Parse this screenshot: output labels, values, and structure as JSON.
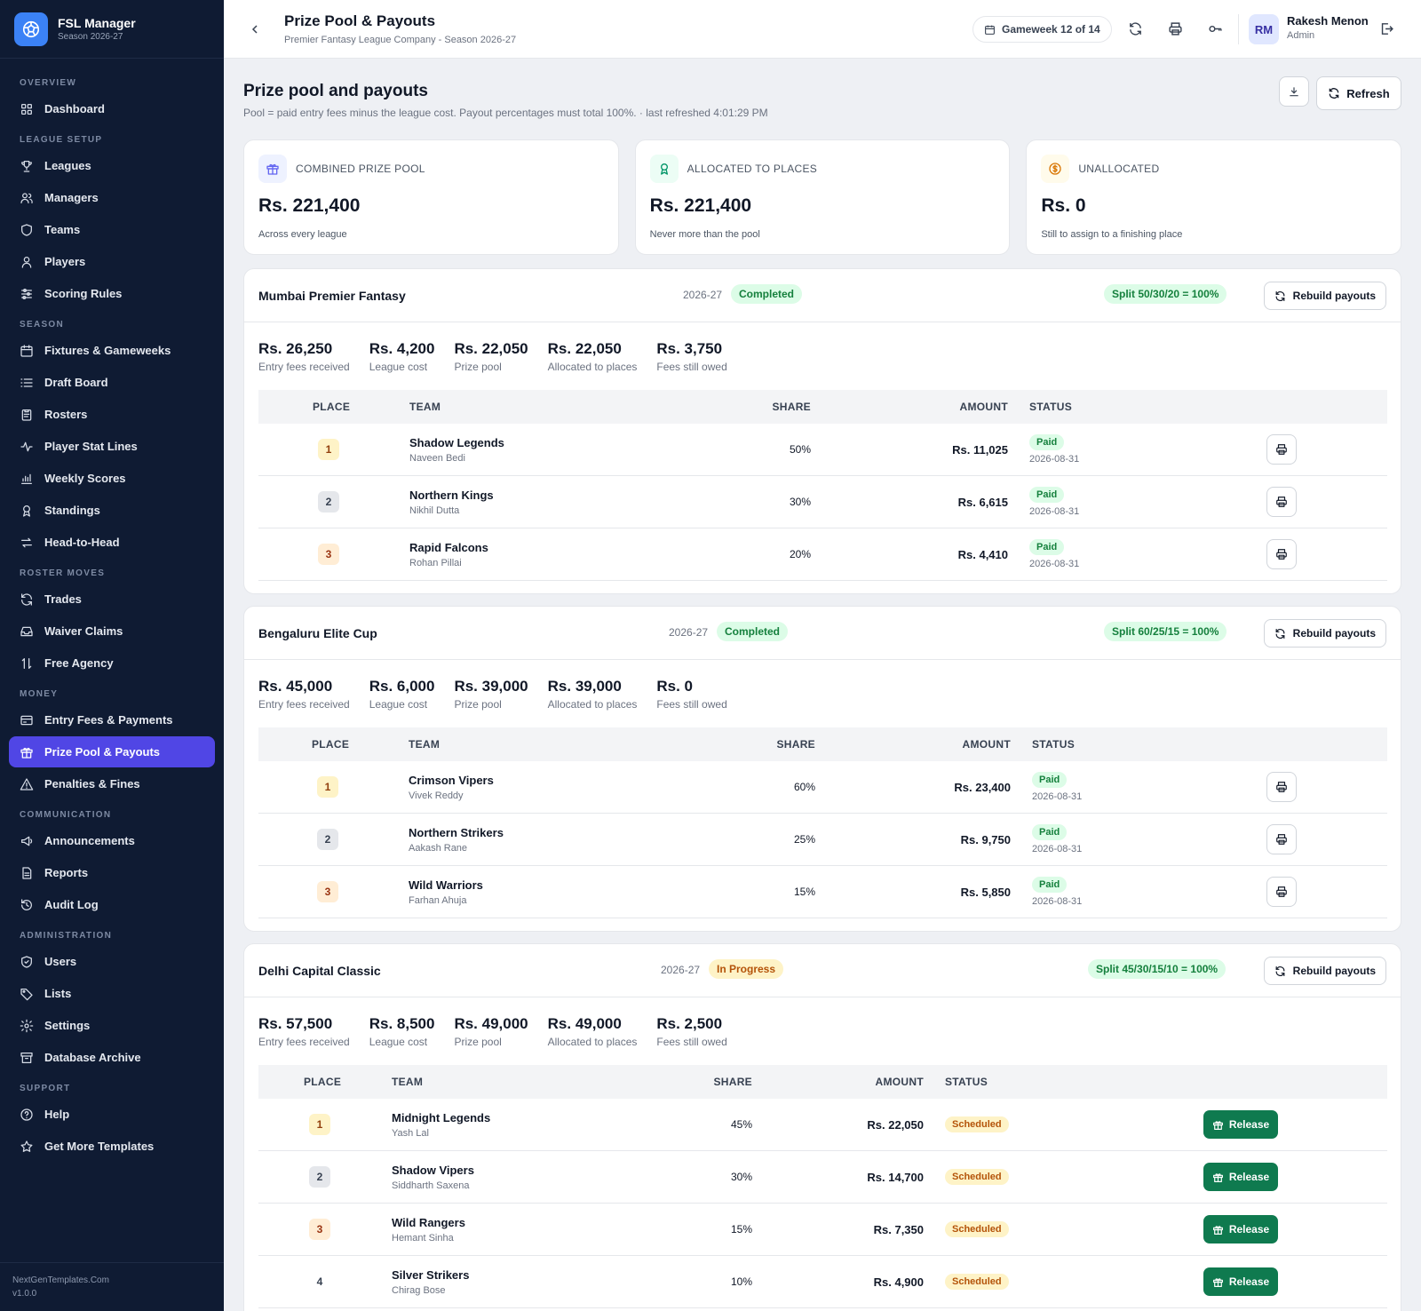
{
  "app": {
    "name": "FSL Manager",
    "season": "Season 2026-27",
    "footer_site": "NextGenTemplates.Com",
    "footer_version": "v1.0.0"
  },
  "nav": {
    "sections": [
      {
        "title": "OVERVIEW",
        "items": [
          {
            "label": "Dashboard",
            "icon": "grid-icon"
          }
        ]
      },
      {
        "title": "LEAGUE SETUP",
        "items": [
          {
            "label": "Leagues",
            "icon": "trophy-icon"
          },
          {
            "label": "Managers",
            "icon": "users-icon"
          },
          {
            "label": "Teams",
            "icon": "shield-icon"
          },
          {
            "label": "Players",
            "icon": "user-icon"
          },
          {
            "label": "Scoring Rules",
            "icon": "sliders-icon"
          }
        ]
      },
      {
        "title": "SEASON",
        "items": [
          {
            "label": "Fixtures & Gameweeks",
            "icon": "calendar-icon"
          },
          {
            "label": "Draft Board",
            "icon": "list-icon"
          },
          {
            "label": "Rosters",
            "icon": "clipboard-icon"
          },
          {
            "label": "Player Stat Lines",
            "icon": "activity-icon"
          },
          {
            "label": "Weekly Scores",
            "icon": "bar-chart-icon"
          },
          {
            "label": "Standings",
            "icon": "award-icon"
          },
          {
            "label": "Head-to-Head",
            "icon": "swap-icon"
          }
        ]
      },
      {
        "title": "ROSTER MOVES",
        "items": [
          {
            "label": "Trades",
            "icon": "refresh-icon"
          },
          {
            "label": "Waiver Claims",
            "icon": "inbox-icon"
          },
          {
            "label": "Free Agency",
            "icon": "arrows-updown-icon"
          }
        ]
      },
      {
        "title": "MONEY",
        "items": [
          {
            "label": "Entry Fees & Payments",
            "icon": "credit-card-icon"
          },
          {
            "label": "Prize Pool & Payouts",
            "icon": "gift-icon",
            "active": true
          },
          {
            "label": "Penalties & Fines",
            "icon": "alert-triangle-icon"
          }
        ]
      },
      {
        "title": "COMMUNICATION",
        "items": [
          {
            "label": "Announcements",
            "icon": "megaphone-icon"
          },
          {
            "label": "Reports",
            "icon": "file-icon"
          },
          {
            "label": "Audit Log",
            "icon": "history-icon"
          }
        ]
      },
      {
        "title": "ADMINISTRATION",
        "items": [
          {
            "label": "Users",
            "icon": "shield-check-icon"
          },
          {
            "label": "Lists",
            "icon": "tag-icon"
          },
          {
            "label": "Settings",
            "icon": "gear-icon"
          },
          {
            "label": "Database Archive",
            "icon": "archive-icon"
          }
        ]
      },
      {
        "title": "SUPPORT",
        "items": [
          {
            "label": "Help",
            "icon": "help-icon"
          },
          {
            "label": "Get More Templates",
            "icon": "star-icon"
          }
        ]
      }
    ]
  },
  "topbar": {
    "title": "Prize Pool & Payouts",
    "subtitle": "Premier Fantasy League Company - Season 2026-27",
    "gameweek": "Gameweek 12 of 14",
    "user_initials": "RM",
    "user_name": "Rakesh Menon",
    "user_role": "Admin"
  },
  "page": {
    "title": "Prize pool and payouts",
    "subtitle": "Pool = paid entry fees minus the league cost. Payout percentages must total 100%. · last refreshed 4:01:29 PM",
    "refresh_label": "Refresh"
  },
  "summary": [
    {
      "label": "COMBINED PRIZE POOL",
      "value": "Rs. 221,400",
      "note": "Across every league",
      "icon": "gift-icon",
      "color": "#6366f1",
      "bg": "#eef2ff"
    },
    {
      "label": "ALLOCATED TO PLACES",
      "value": "Rs. 221,400",
      "note": "Never more than the pool",
      "icon": "award-icon",
      "color": "#059669",
      "bg": "#ecfdf5"
    },
    {
      "label": "UNALLOCATED",
      "value": "Rs. 0",
      "note": "Still to assign to a finishing place",
      "icon": "dollar-icon",
      "color": "#d97706",
      "bg": "#fffbeb"
    }
  ],
  "table_headers": {
    "place": "PLACE",
    "team": "TEAM",
    "share": "SHARE",
    "amount": "AMOUNT",
    "status": "STATUS"
  },
  "rebuild_label": "Rebuild payouts",
  "release_label": "Release",
  "leagues": [
    {
      "name": "Mumbai Premier Fantasy",
      "season": "2026-27",
      "status": "Completed",
      "split": "Split 50/30/20 = 100%",
      "stats": [
        {
          "value": "Rs. 26,250",
          "label": "Entry fees received"
        },
        {
          "value": "Rs. 4,200",
          "label": "League cost"
        },
        {
          "value": "Rs. 22,050",
          "label": "Prize pool"
        },
        {
          "value": "Rs. 22,050",
          "label": "Allocated to places"
        },
        {
          "value": "Rs. 3,750",
          "label": "Fees still owed"
        }
      ],
      "rows": [
        {
          "place": "1",
          "team": "Shadow Legends",
          "manager": "Naveen Bedi",
          "share": "50%",
          "amount": "Rs. 11,025",
          "status": "Paid",
          "date": "2026-08-31"
        },
        {
          "place": "2",
          "team": "Northern Kings",
          "manager": "Nikhil Dutta",
          "share": "30%",
          "amount": "Rs. 6,615",
          "status": "Paid",
          "date": "2026-08-31"
        },
        {
          "place": "3",
          "team": "Rapid Falcons",
          "manager": "Rohan Pillai",
          "share": "20%",
          "amount": "Rs. 4,410",
          "status": "Paid",
          "date": "2026-08-31"
        }
      ]
    },
    {
      "name": "Bengaluru Elite Cup",
      "season": "2026-27",
      "status": "Completed",
      "split": "Split 60/25/15 = 100%",
      "stats": [
        {
          "value": "Rs. 45,000",
          "label": "Entry fees received"
        },
        {
          "value": "Rs. 6,000",
          "label": "League cost"
        },
        {
          "value": "Rs. 39,000",
          "label": "Prize pool"
        },
        {
          "value": "Rs. 39,000",
          "label": "Allocated to places"
        },
        {
          "value": "Rs. 0",
          "label": "Fees still owed"
        }
      ],
      "rows": [
        {
          "place": "1",
          "team": "Crimson Vipers",
          "manager": "Vivek Reddy",
          "share": "60%",
          "amount": "Rs. 23,400",
          "status": "Paid",
          "date": "2026-08-31"
        },
        {
          "place": "2",
          "team": "Northern Strikers",
          "manager": "Aakash Rane",
          "share": "25%",
          "amount": "Rs. 9,750",
          "status": "Paid",
          "date": "2026-08-31"
        },
        {
          "place": "3",
          "team": "Wild Warriors",
          "manager": "Farhan Ahuja",
          "share": "15%",
          "amount": "Rs. 5,850",
          "status": "Paid",
          "date": "2026-08-31"
        }
      ]
    },
    {
      "name": "Delhi Capital Classic",
      "season": "2026-27",
      "status": "In Progress",
      "split": "Split 45/30/15/10 = 100%",
      "stats": [
        {
          "value": "Rs. 57,500",
          "label": "Entry fees received"
        },
        {
          "value": "Rs. 8,500",
          "label": "League cost"
        },
        {
          "value": "Rs. 49,000",
          "label": "Prize pool"
        },
        {
          "value": "Rs. 49,000",
          "label": "Allocated to places"
        },
        {
          "value": "Rs. 2,500",
          "label": "Fees still owed"
        }
      ],
      "rows": [
        {
          "place": "1",
          "team": "Midnight Legends",
          "manager": "Yash Lal",
          "share": "45%",
          "amount": "Rs. 22,050",
          "status": "Scheduled"
        },
        {
          "place": "2",
          "team": "Shadow Vipers",
          "manager": "Siddharth Saxena",
          "share": "30%",
          "amount": "Rs. 14,700",
          "status": "Scheduled"
        },
        {
          "place": "3",
          "team": "Wild Rangers",
          "manager": "Hemant Sinha",
          "share": "15%",
          "amount": "Rs. 7,350",
          "status": "Scheduled"
        },
        {
          "place": "4",
          "team": "Silver Strikers",
          "manager": "Chirag Bose",
          "share": "10%",
          "amount": "Rs. 4,900",
          "status": "Scheduled"
        }
      ]
    }
  ]
}
